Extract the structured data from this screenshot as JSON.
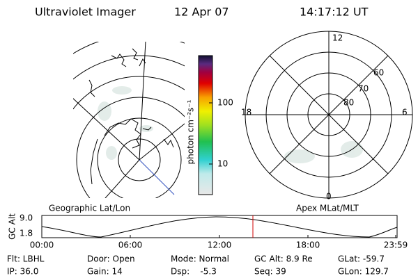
{
  "header": {
    "title": "Ultraviolet Imager",
    "date": "12 Apr 07",
    "time": "14:17:12 UT"
  },
  "colorbar": {
    "unit_label": "photon cm⁻²s⁻¹",
    "ticks": [
      "100",
      "10"
    ]
  },
  "polar_plot": {
    "hour_labels": [
      "12",
      "18",
      "6",
      "0"
    ],
    "lat_labels": [
      "60",
      "70",
      "80"
    ]
  },
  "panel_labels": [
    "Geographic Lat/Lon",
    "Apex MLat/MLT"
  ],
  "altitude_plot": {
    "axis_label": "GC Alt",
    "y_labels": [
      "9.0",
      "1.8"
    ],
    "time_labels": [
      "00:00",
      "06:00",
      "12:00",
      "18:00",
      "23:59"
    ]
  },
  "info": {
    "rows": [
      [
        "Flt: LBHL",
        "Door: Open",
        "Mode: Normal",
        "GC Alt: 8.9 Re",
        "GLat: -59.7"
      ],
      [
        "IP: 36.0",
        "Gain: 14",
        "Dsp:    -5.3",
        "Seq: 39",
        "GLon: 129.7"
      ]
    ]
  }
}
